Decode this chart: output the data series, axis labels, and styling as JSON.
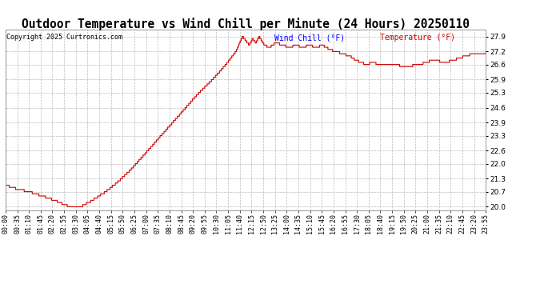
{
  "title": "Outdoor Temperature vs Wind Chill per Minute (24 Hours) 20250110",
  "copyright": "Copyright 2025 Curtronics.com",
  "legend_wind_chill": "Wind Chill (°F)",
  "legend_temperature": "Temperature (°F)",
  "wind_chill_color": "#0000FF",
  "temperature_color": "#CC0000",
  "ylim": [
    19.85,
    28.2
  ],
  "yticks": [
    20.0,
    20.7,
    21.3,
    22.0,
    22.6,
    23.3,
    23.9,
    24.6,
    25.3,
    25.9,
    26.6,
    27.2,
    27.9
  ],
  "background_color": "#FFFFFF",
  "grid_color": "#BBBBBB",
  "title_fontsize": 10.5,
  "tick_fontsize": 6.0,
  "copyright_fontsize": 6.0,
  "legend_fontsize": 7.0,
  "x_tick_labels": [
    "00:00",
    "00:35",
    "01:10",
    "01:45",
    "02:20",
    "02:55",
    "03:30",
    "04:05",
    "04:40",
    "05:15",
    "05:50",
    "06:25",
    "07:00",
    "07:35",
    "08:10",
    "08:45",
    "09:20",
    "09:55",
    "10:30",
    "11:05",
    "11:40",
    "12:15",
    "12:50",
    "13:25",
    "14:00",
    "14:35",
    "15:10",
    "15:45",
    "16:20",
    "16:55",
    "17:30",
    "18:05",
    "18:40",
    "19:15",
    "19:50",
    "20:25",
    "21:00",
    "21:35",
    "22:10",
    "22:45",
    "23:20",
    "23:55"
  ],
  "n_minutes": 1440,
  "key_points_temp": [
    [
      0,
      21.0
    ],
    [
      30,
      20.85
    ],
    [
      80,
      20.65
    ],
    [
      120,
      20.45
    ],
    [
      155,
      20.25
    ],
    [
      175,
      20.1
    ],
    [
      195,
      20.0
    ],
    [
      215,
      20.0
    ],
    [
      230,
      20.05
    ],
    [
      260,
      20.3
    ],
    [
      300,
      20.7
    ],
    [
      340,
      21.2
    ],
    [
      380,
      21.8
    ],
    [
      420,
      22.5
    ],
    [
      460,
      23.2
    ],
    [
      500,
      23.9
    ],
    [
      540,
      24.6
    ],
    [
      580,
      25.3
    ],
    [
      620,
      25.9
    ],
    [
      660,
      26.6
    ],
    [
      690,
      27.2
    ],
    [
      710,
      27.9
    ],
    [
      720,
      27.7
    ],
    [
      730,
      27.5
    ],
    [
      740,
      27.8
    ],
    [
      750,
      27.6
    ],
    [
      760,
      27.9
    ],
    [
      775,
      27.5
    ],
    [
      790,
      27.4
    ],
    [
      810,
      27.6
    ],
    [
      830,
      27.5
    ],
    [
      850,
      27.4
    ],
    [
      870,
      27.5
    ],
    [
      890,
      27.4
    ],
    [
      910,
      27.5
    ],
    [
      930,
      27.4
    ],
    [
      950,
      27.5
    ],
    [
      970,
      27.3
    ],
    [
      990,
      27.2
    ],
    [
      1010,
      27.1
    ],
    [
      1030,
      27.0
    ],
    [
      1050,
      26.8
    ],
    [
      1065,
      26.7
    ],
    [
      1080,
      26.6
    ],
    [
      1100,
      26.7
    ],
    [
      1120,
      26.6
    ],
    [
      1140,
      26.65
    ],
    [
      1160,
      26.6
    ],
    [
      1180,
      26.55
    ],
    [
      1200,
      26.5
    ],
    [
      1220,
      26.55
    ],
    [
      1240,
      26.6
    ],
    [
      1260,
      26.7
    ],
    [
      1280,
      26.8
    ],
    [
      1300,
      26.75
    ],
    [
      1320,
      26.7
    ],
    [
      1340,
      26.8
    ],
    [
      1360,
      26.9
    ],
    [
      1380,
      27.0
    ],
    [
      1400,
      27.1
    ],
    [
      1420,
      27.1
    ],
    [
      1439,
      27.15
    ]
  ]
}
